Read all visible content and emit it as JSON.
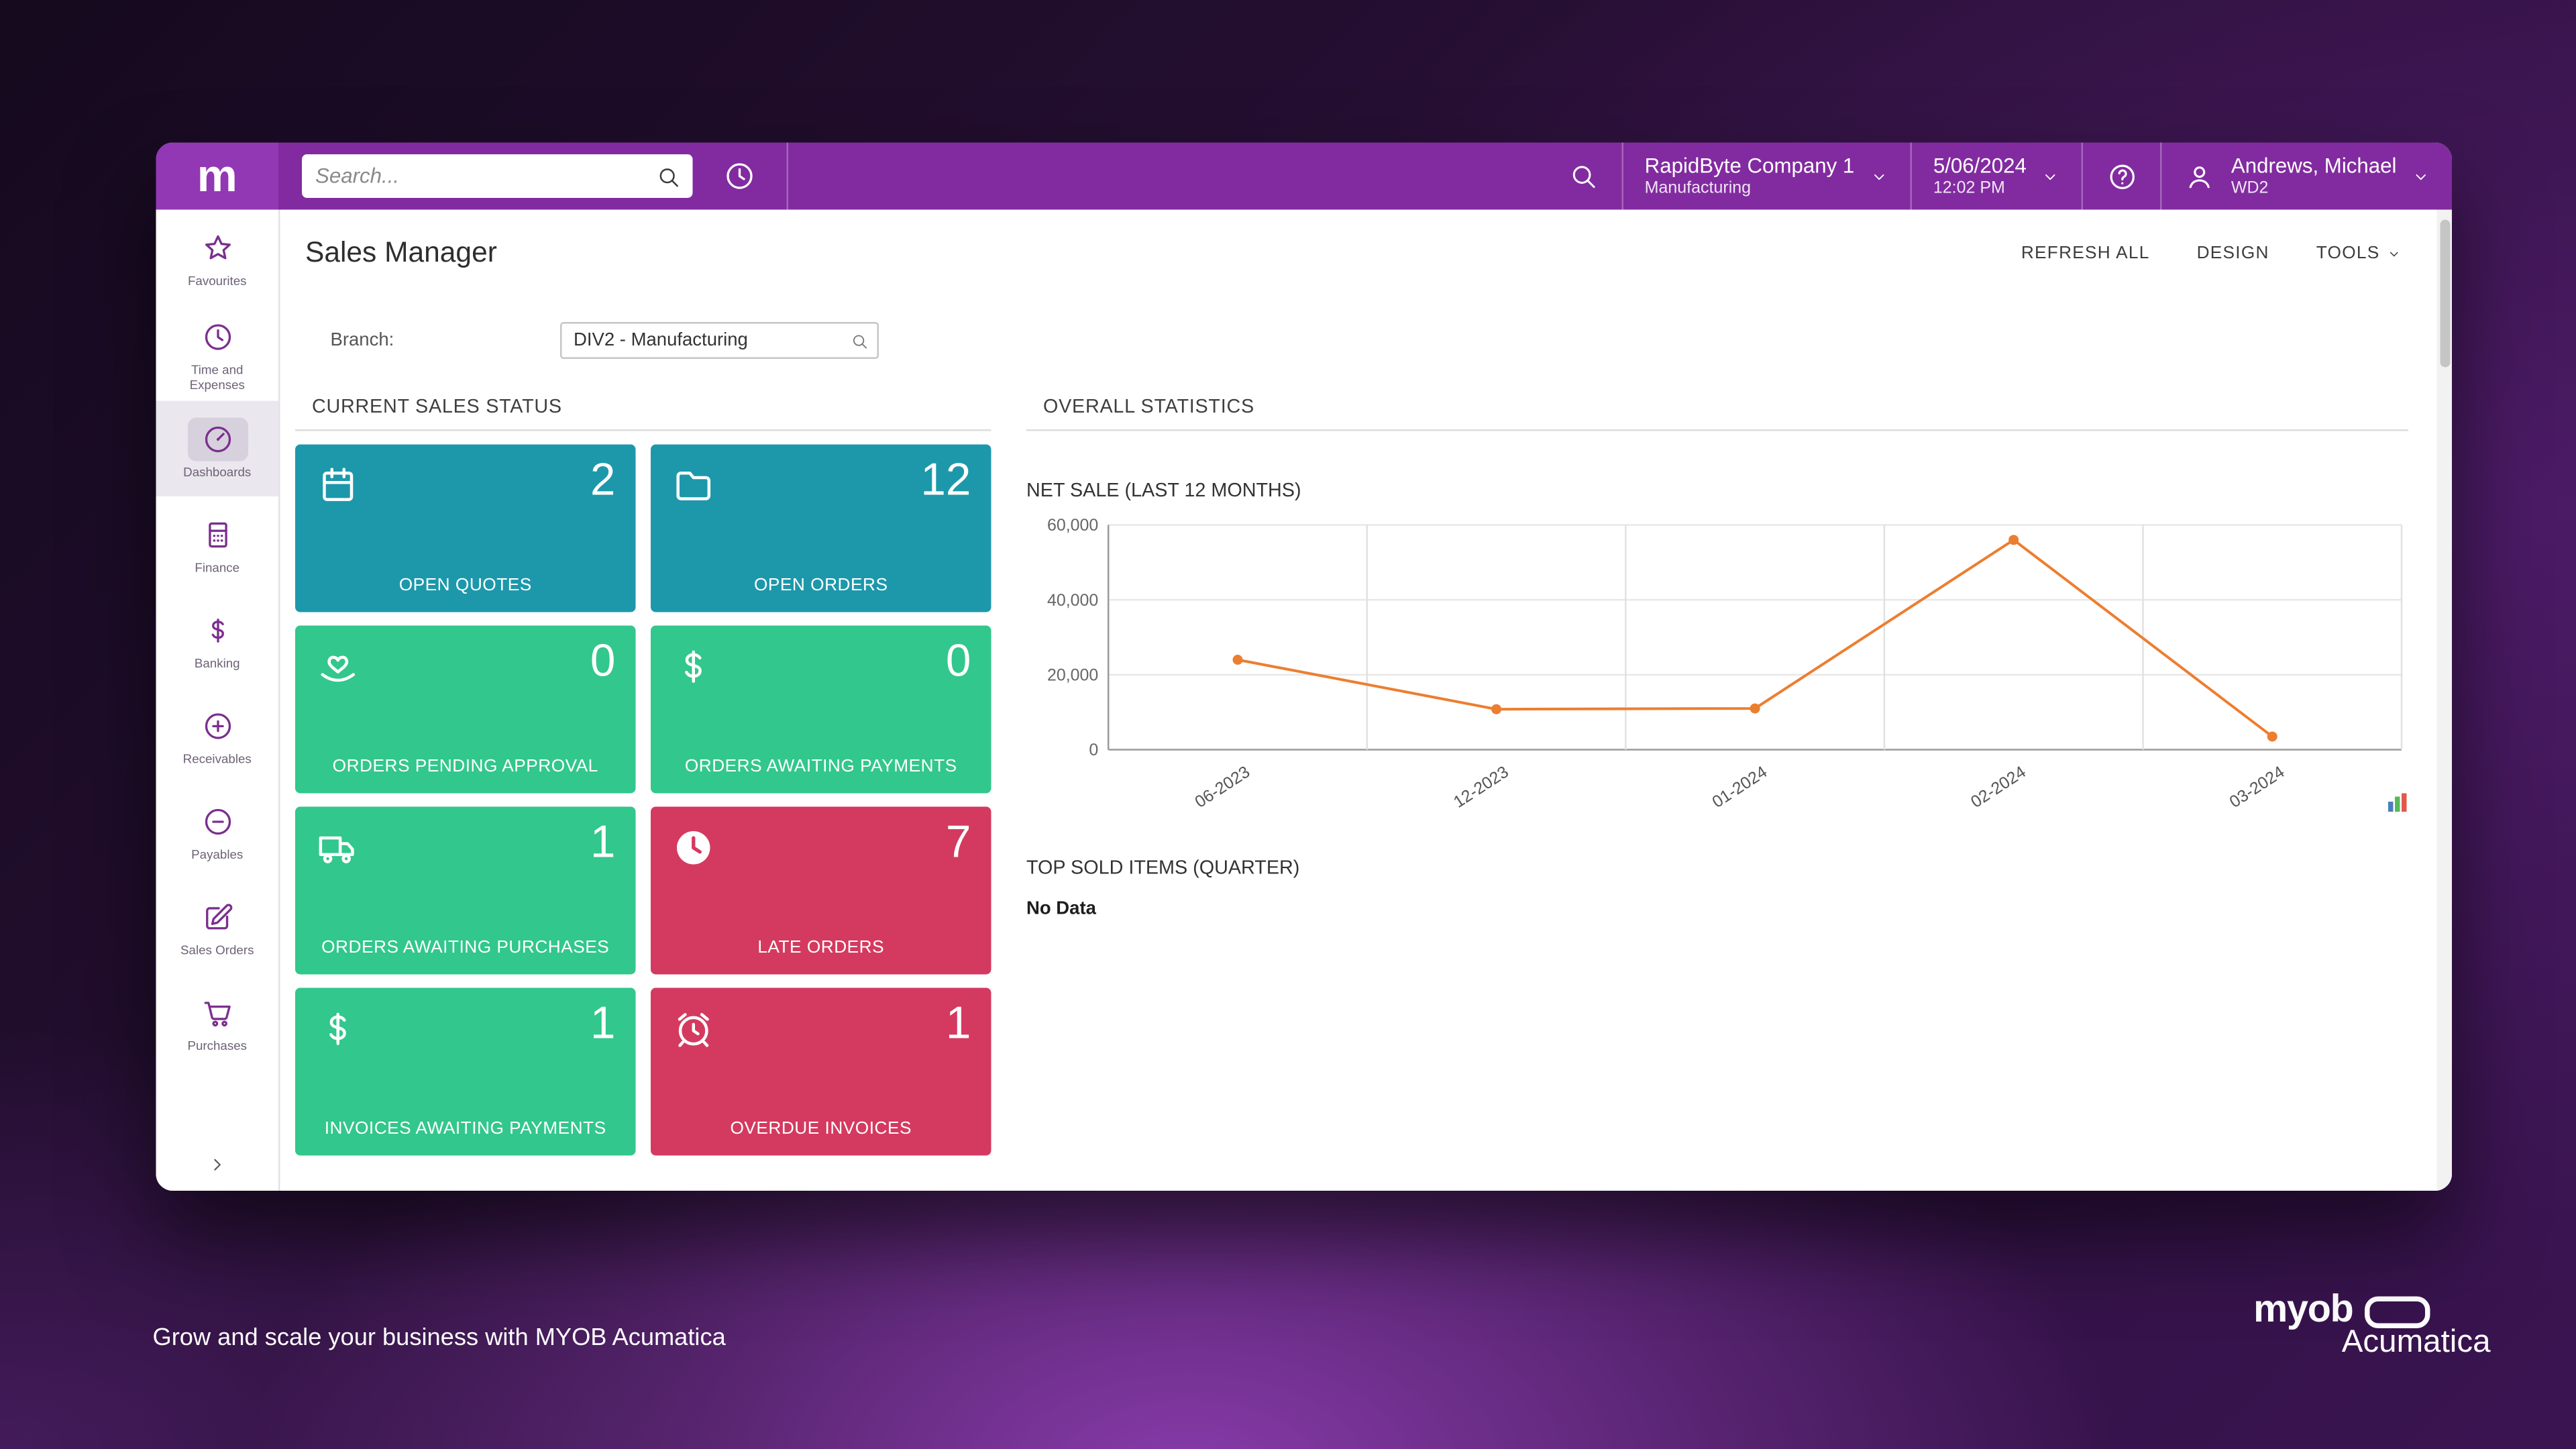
{
  "header": {
    "logo_letter": "m",
    "search_placeholder": "Search...",
    "company": {
      "name": "RapidByte Company 1",
      "branch": "Manufacturing"
    },
    "date": "5/06/2024",
    "time": "12:02 PM",
    "user": {
      "name": "Andrews, Michael",
      "branch": "WD2"
    }
  },
  "sidebar": {
    "items": [
      {
        "label": "Favourites",
        "icon": "star",
        "active": false
      },
      {
        "label": "Time and Expenses",
        "icon": "clock",
        "active": false
      },
      {
        "label": "Dashboards",
        "icon": "gauge",
        "active": true
      },
      {
        "label": "Finance",
        "icon": "calculator",
        "active": false
      },
      {
        "label": "Banking",
        "icon": "dollar",
        "active": false
      },
      {
        "label": "Receivables",
        "icon": "plus-circle",
        "active": false
      },
      {
        "label": "Payables",
        "icon": "minus-circle",
        "active": false
      },
      {
        "label": "Sales Orders",
        "icon": "pencil",
        "active": false
      },
      {
        "label": "Purchases",
        "icon": "cart",
        "active": false
      }
    ],
    "expand_icon": "chevron-right"
  },
  "page": {
    "title": "Sales Manager",
    "actions": {
      "refresh": "REFRESH ALL",
      "design": "DESIGN",
      "tools": "TOOLS"
    },
    "branch_label": "Branch:",
    "branch_value": "DIV2 - Manufacturing"
  },
  "sections": {
    "sales_status": {
      "title": "CURRENT SALES STATUS",
      "tiles": [
        {
          "value": "2",
          "label": "OPEN QUOTES",
          "color": "teal",
          "icon": "quotes"
        },
        {
          "value": "12",
          "label": "OPEN ORDERS",
          "color": "teal",
          "icon": "folder"
        },
        {
          "value": "0",
          "label": "ORDERS PENDING APPROVAL",
          "color": "green",
          "icon": "approval"
        },
        {
          "value": "0",
          "label": "ORDERS AWAITING PAYMENTS",
          "color": "green",
          "icon": "dollar"
        },
        {
          "value": "1",
          "label": "ORDERS AWAITING PURCHASES",
          "color": "green",
          "icon": "truck"
        },
        {
          "value": "7",
          "label": "LATE ORDERS",
          "color": "red",
          "icon": "clock-filled"
        },
        {
          "value": "1",
          "label": "INVOICES AWAITING PAYMENTS",
          "color": "green",
          "icon": "dollar"
        },
        {
          "value": "1",
          "label": "OVERDUE INVOICES",
          "color": "red",
          "icon": "alarm"
        }
      ]
    },
    "overall": {
      "title": "OVERALL STATISTICS",
      "chart_title": "NET SALE (LAST 12 MONTHS)",
      "top_sold_title": "TOP SOLD ITEMS (QUARTER)",
      "top_sold_empty": "No Data"
    }
  },
  "chart_data": {
    "type": "line",
    "title": "NET SALE (LAST 12 MONTHS)",
    "x": [
      "06-2023",
      "12-2023",
      "01-2024",
      "02-2024",
      "03-2024"
    ],
    "values": [
      24000,
      10800,
      11000,
      56000,
      3500
    ],
    "ylim": [
      0,
      60000
    ],
    "yticks": [
      0,
      20000,
      40000,
      60000
    ],
    "ytick_labels": [
      "0",
      "20,000",
      "40,000",
      "60,000"
    ],
    "line_color": "#ec7e30",
    "grid": true,
    "legend": false
  },
  "desktop": {
    "tagline": "Grow and scale your business with MYOB Acumatica",
    "brand": {
      "line1": "myob",
      "line2": "Acumatica"
    }
  },
  "colors": {
    "header_purple": "#822ba0",
    "logo_purple": "#9238b4",
    "teal": "#1d98ab",
    "green": "#32c78c",
    "red": "#d43a60",
    "chart_line": "#ec7e30",
    "sidebar_icon": "#7b2f8e"
  }
}
